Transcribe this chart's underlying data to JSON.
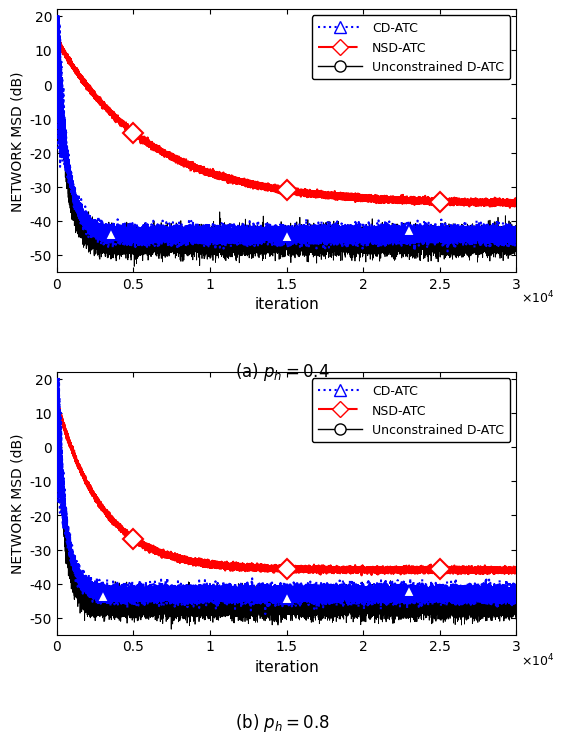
{
  "xlim": [
    0,
    30000
  ],
  "ylim": [
    -55,
    22
  ],
  "yticks": [
    -50,
    -40,
    -30,
    -20,
    -10,
    0,
    10,
    20
  ],
  "xtick_vals": [
    0,
    5000,
    10000,
    15000,
    20000,
    25000,
    30000
  ],
  "xtick_labels": [
    "0",
    "0.5",
    "1",
    "1.5",
    "2",
    "2.5",
    "3"
  ],
  "xlabel": "iteration",
  "ylabel": "NETWORK MSD (dB)",
  "title_a": "(a) $p_h = 0.4$",
  "title_b": "(b) $p_h = 0.8$",
  "cd_color": "#0000FF",
  "nsd_color": "#FF0000",
  "unc_color": "#000000",
  "cd_start_a": 13,
  "cd_end_a": -44,
  "cd_tau_a": 700,
  "nsd_start_a": 13,
  "nsd_end_a": -35,
  "nsd_tau_a": 6000,
  "unc_start_a": 13,
  "unc_end_a": -46,
  "unc_tau_a": 600,
  "cd_noise_a": 1.2,
  "nsd_noise_a": 0.0,
  "unc_noise_a": 1.8,
  "cd_noise_start_a": 3.0,
  "cd_start_b": 13,
  "cd_end_b": -43,
  "cd_tau_b": 600,
  "nsd_start_b": 13,
  "nsd_end_b": -36,
  "nsd_tau_b": 3000,
  "unc_start_b": 13,
  "unc_end_b": -46,
  "unc_tau_b": 500,
  "cd_noise_b": 1.2,
  "nsd_noise_b": 0.0,
  "unc_noise_b": 1.8,
  "cd_noise_start_b": 2.5,
  "marker_iters_cd_a": [
    3500,
    15000,
    23000
  ],
  "marker_iters_nsd_a": [
    5000,
    15000,
    25000
  ],
  "marker_iters_cd_b": [
    3000,
    15000,
    23000
  ],
  "marker_iters_nsd_b": [
    5000,
    15000,
    25000
  ]
}
